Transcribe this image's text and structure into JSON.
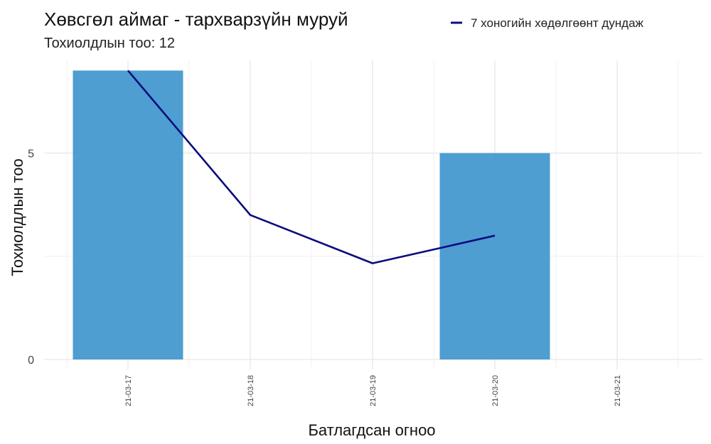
{
  "chart_data": {
    "type": "bar",
    "title": "Хөвсгөл аймаг - тархварзүйн муруй",
    "subtitle": "Тохиолдлын тоо: 12",
    "xlabel": "Батлагдсан огноо",
    "ylabel": "Тохиолдлын тоо",
    "categories": [
      "21-03-17",
      "21-03-18",
      "21-03-19",
      "21-03-20",
      "21-03-21"
    ],
    "series": [
      {
        "values": [
          7,
          0,
          0,
          5,
          0
        ],
        "color": "#3b93cc"
      },
      {
        "name": "7 хоногийн хөдөлгөөнт дундаж",
        "type": "line",
        "values": [
          7,
          3.5,
          2.33,
          3,
          null
        ],
        "color": "#0c0c7e"
      }
    ],
    "yticks": [
      0,
      5
    ],
    "ylim": [
      0,
      7.3
    ],
    "grid": true,
    "legend_position": "top-right"
  }
}
